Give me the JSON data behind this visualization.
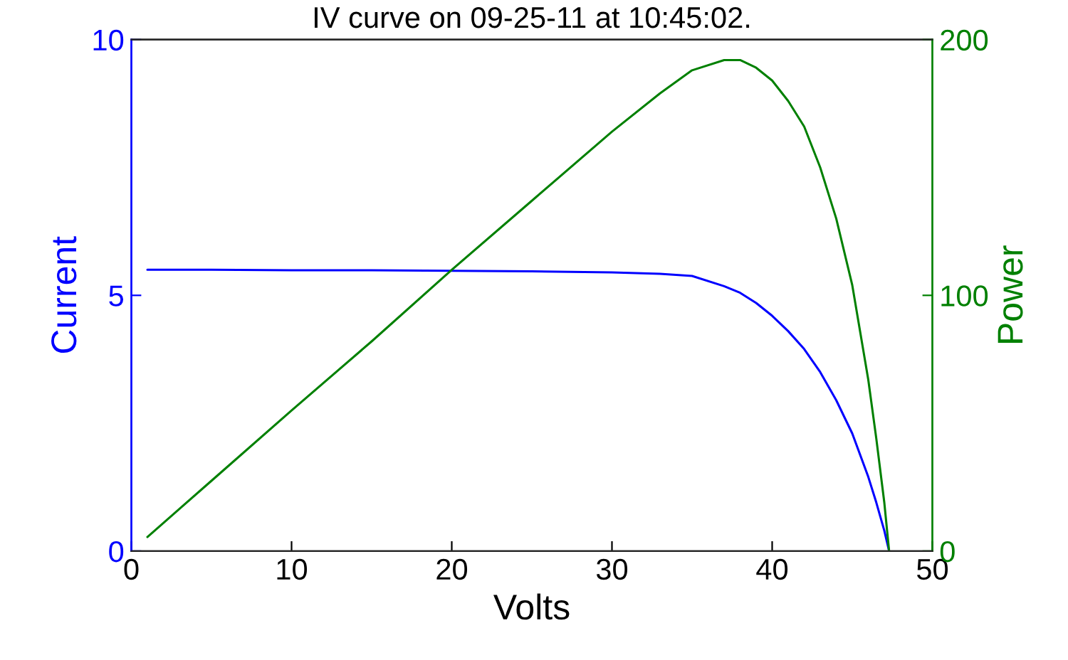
{
  "chart_data": {
    "type": "line",
    "title": "IV curve on 09-25-11 at 10:45:02.",
    "xlabel": "Volts",
    "ylabel": "Current",
    "y2label": "Power",
    "x": [
      1,
      5,
      10,
      15,
      20,
      25,
      30,
      33,
      35,
      37,
      38,
      39,
      40,
      41,
      42,
      43,
      44,
      45,
      46,
      46.5,
      47,
      47.3
    ],
    "series": [
      {
        "color": "#0000ff",
        "values": [
          5.5,
          5.5,
          5.49,
          5.49,
          5.48,
          5.47,
          5.45,
          5.42,
          5.38,
          5.18,
          5.05,
          4.85,
          4.6,
          4.3,
          3.95,
          3.5,
          2.95,
          2.3,
          1.45,
          0.95,
          0.4,
          0
        ]
      },
      {
        "color": "#008000",
        "axis": "y2",
        "values": [
          5.5,
          27.5,
          55,
          82,
          110,
          137,
          164,
          179,
          188,
          192,
          192,
          189,
          184,
          176,
          166,
          150,
          130,
          104,
          67,
          44,
          19,
          0
        ]
      }
    ],
    "xlim": [
      0,
      50
    ],
    "xticks": [
      0,
      10,
      20,
      30,
      40,
      50
    ],
    "ylim": [
      0,
      10
    ],
    "yticks": [
      0,
      5,
      10
    ],
    "y2lim": [
      0,
      200
    ],
    "y2ticks": [
      0,
      100,
      200
    ],
    "grid": false,
    "legend": false,
    "marker": "none",
    "line_style": "solid"
  }
}
